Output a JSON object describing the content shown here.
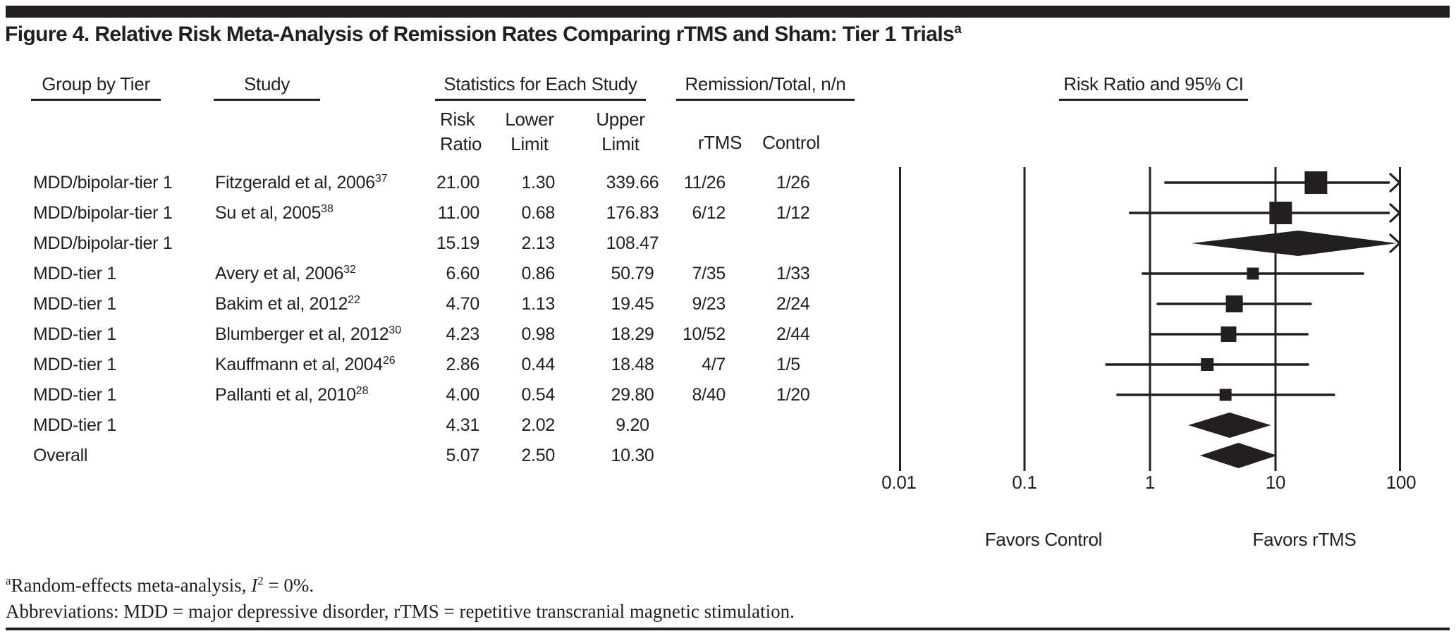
{
  "figure": {
    "title": "Figure 4. Relative Risk Meta-Analysis of Remission Rates Comparing rTMS and Sham: Tier 1 Trials",
    "title_sup": "a"
  },
  "table": {
    "headers": {
      "group": "Group by Tier",
      "study": "Study",
      "stats": "Statistics for Each Study",
      "remission": "Remission/Total, n/n",
      "plot": "Risk Ratio and 95% CI"
    },
    "subheaders": {
      "risk_two_line": "Risk\nRatio",
      "lower_two_line": "Lower\nLimit",
      "upper_two_line": "Upper\nLimit",
      "rtms": "rTMS",
      "control": "Control"
    },
    "rows": [
      {
        "group": "MDD/bipolar-tier 1",
        "study": "Fitzgerald et al, 2006",
        "ref": "37",
        "risk_ratio": "21.00",
        "lower": "1.30",
        "upper": "339.66",
        "rtms": "11/26",
        "control": "1/26"
      },
      {
        "group": "MDD/bipolar-tier 1",
        "study": "Su et al, 2005",
        "ref": "38",
        "risk_ratio": "11.00",
        "lower": "0.68",
        "upper": "176.83",
        "rtms": "6/12",
        "control": "1/12"
      },
      {
        "group": "MDD/bipolar-tier 1",
        "study": "",
        "ref": "",
        "risk_ratio": "15.19",
        "lower": "2.13",
        "upper": "108.47",
        "rtms": "",
        "control": ""
      },
      {
        "group": "MDD-tier 1",
        "study": "Avery et al, 2006",
        "ref": "32",
        "risk_ratio": "6.60",
        "lower": "0.86",
        "upper": "50.79",
        "rtms": "7/35",
        "control": "1/33"
      },
      {
        "group": "MDD-tier 1",
        "study": "Bakim et al, 2012",
        "ref": "22",
        "risk_ratio": "4.70",
        "lower": "1.13",
        "upper": "19.45",
        "rtms": "9/23",
        "control": "2/24"
      },
      {
        "group": "MDD-tier 1",
        "study": "Blumberger et al, 2012",
        "ref": "30",
        "risk_ratio": "4.23",
        "lower": "0.98",
        "upper": "18.29",
        "rtms": "10/52",
        "control": "2/44"
      },
      {
        "group": "MDD-tier 1",
        "study": "Kauffmann et al, 2004",
        "ref": "26",
        "risk_ratio": "2.86",
        "lower": "0.44",
        "upper": "18.48",
        "rtms": "4/7",
        "control": "1/5"
      },
      {
        "group": "MDD-tier 1",
        "study": "Pallanti et al, 2010",
        "ref": "28",
        "risk_ratio": "4.00",
        "lower": "0.54",
        "upper": "29.80",
        "rtms": "8/40",
        "control": "1/20"
      },
      {
        "group": "MDD-tier 1",
        "study": "",
        "ref": "",
        "risk_ratio": "4.31",
        "lower": "2.02",
        "upper": "9.20",
        "rtms": "",
        "control": ""
      },
      {
        "group": "Overall",
        "study": "",
        "ref": "",
        "risk_ratio": "5.07",
        "lower": "2.50",
        "upper": "10.30",
        "rtms": "",
        "control": ""
      }
    ]
  },
  "chart_data": {
    "type": "forest",
    "x_scale": "log10",
    "xlim": [
      0.01,
      100
    ],
    "x_ticks": [
      "0.01",
      "0.1",
      "1",
      "10",
      "100"
    ],
    "header": "Risk Ratio and 95% CI",
    "favors_left": "Favors Control",
    "favors_right": "Favors rTMS",
    "marker_color": "#231f20",
    "rows": [
      {
        "label": "Fitzgerald et al, 2006",
        "shape": "square",
        "rr": 21.0,
        "lo": 1.3,
        "hi": 339.66,
        "size": 32
      },
      {
        "label": "Su et al, 2005",
        "shape": "square",
        "rr": 11.0,
        "lo": 0.68,
        "hi": 176.83,
        "size": 32
      },
      {
        "label": "MDD/bipolar-tier 1 pooled",
        "shape": "diamond",
        "rr": 15.19,
        "lo": 2.13,
        "hi": 108.47
      },
      {
        "label": "Avery et al, 2006",
        "shape": "square",
        "rr": 6.6,
        "lo": 0.86,
        "hi": 50.79,
        "size": 17
      },
      {
        "label": "Bakim et al, 2012",
        "shape": "square",
        "rr": 4.7,
        "lo": 1.13,
        "hi": 19.45,
        "size": 24
      },
      {
        "label": "Blumberger et al, 2012",
        "shape": "square",
        "rr": 4.23,
        "lo": 0.98,
        "hi": 18.29,
        "size": 22
      },
      {
        "label": "Kauffmann et al, 2004",
        "shape": "square",
        "rr": 2.86,
        "lo": 0.44,
        "hi": 18.48,
        "size": 18
      },
      {
        "label": "Pallanti et al, 2010",
        "shape": "square",
        "rr": 4.0,
        "lo": 0.54,
        "hi": 29.8,
        "size": 17
      },
      {
        "label": "MDD-tier 1 pooled",
        "shape": "diamond",
        "rr": 4.31,
        "lo": 2.02,
        "hi": 9.2
      },
      {
        "label": "Overall pooled",
        "shape": "diamond",
        "rr": 5.07,
        "lo": 2.5,
        "hi": 10.3
      }
    ]
  },
  "footnotes": {
    "fn1_marker": "a",
    "fn1_pre": "Random-effects meta-analysis, ",
    "fn1_italic": "I",
    "fn1_sup": "2",
    "fn1_post": " = 0%.",
    "fn2": "Abbreviations: MDD = major depressive disorder, rTMS = repetitive transcranial magnetic stimulation."
  }
}
